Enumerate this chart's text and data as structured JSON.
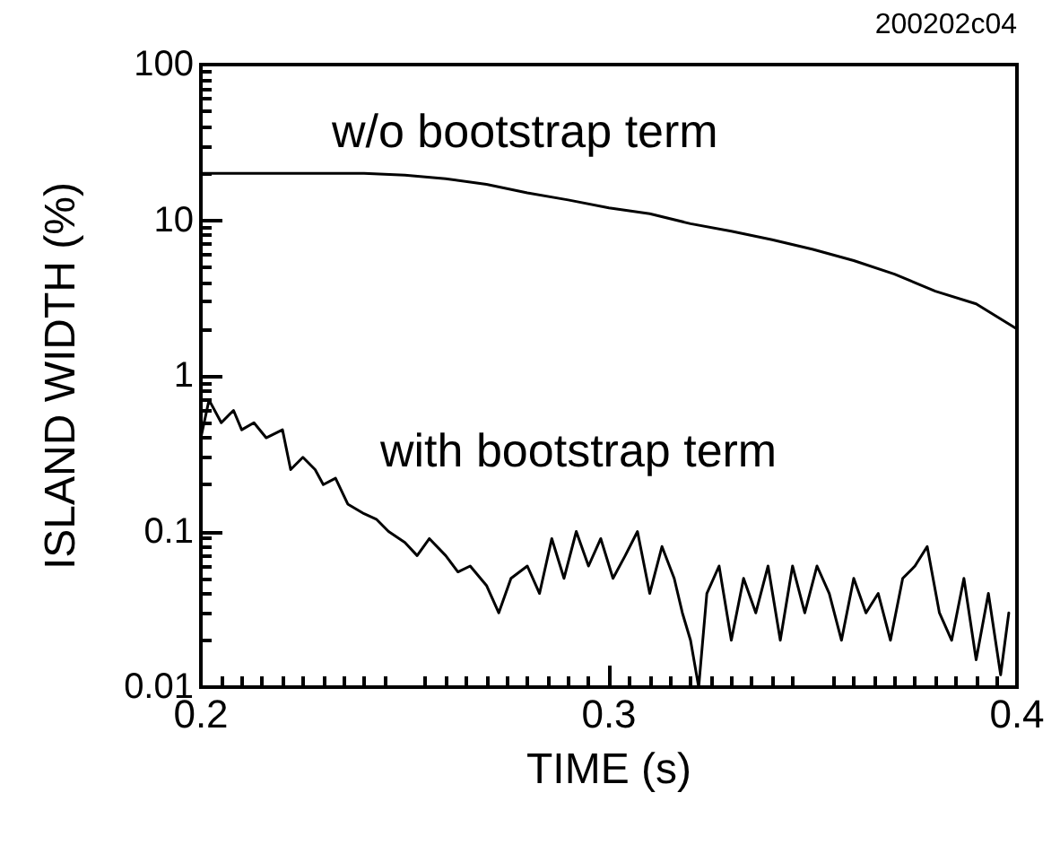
{
  "chart_data": {
    "type": "line",
    "xlabel": "TIME (s)",
    "ylabel": "ISLAND WIDTH (%)",
    "xlim": [
      0.2,
      0.4
    ],
    "xticks": [
      0.2,
      0.3,
      0.4
    ],
    "ylim": [
      0.01,
      100
    ],
    "yticks": [
      0.01,
      0.1,
      1,
      10,
      100
    ],
    "log": "y",
    "marker": "none",
    "line_style": "solid",
    "annotations": [
      "200202c04",
      "w/o bootstrap term",
      "with bootstrap term"
    ],
    "series": [
      {
        "color": "#000000",
        "x": [
          0.2,
          0.22,
          0.24,
          0.25,
          0.26,
          0.27,
          0.28,
          0.29,
          0.3,
          0.31,
          0.32,
          0.33,
          0.34,
          0.35,
          0.36,
          0.37,
          0.38,
          0.39,
          0.4
        ],
        "values": [
          20,
          20,
          20,
          19.5,
          18.5,
          17,
          15,
          13.5,
          12,
          11,
          9.5,
          8.5,
          7.5,
          6.5,
          5.5,
          4.5,
          3.5,
          2.9,
          2.0
        ]
      },
      {
        "color": "#000000",
        "x": [
          0.2,
          0.202,
          0.205,
          0.208,
          0.21,
          0.213,
          0.216,
          0.22,
          0.222,
          0.225,
          0.228,
          0.23,
          0.233,
          0.236,
          0.24,
          0.243,
          0.246,
          0.25,
          0.253,
          0.256,
          0.26,
          0.263,
          0.266,
          0.27,
          0.273,
          0.276,
          0.28,
          0.283,
          0.286,
          0.289,
          0.292,
          0.295,
          0.298,
          0.301,
          0.304,
          0.307,
          0.31,
          0.313,
          0.316,
          0.318,
          0.32,
          0.322,
          0.324,
          0.327,
          0.33,
          0.333,
          0.336,
          0.339,
          0.342,
          0.345,
          0.348,
          0.351,
          0.354,
          0.357,
          0.36,
          0.363,
          0.366,
          0.369,
          0.372,
          0.375,
          0.378,
          0.381,
          0.384,
          0.387,
          0.39,
          0.393,
          0.396,
          0.398
        ],
        "values": [
          0.4,
          0.7,
          0.5,
          0.6,
          0.45,
          0.5,
          0.4,
          0.45,
          0.25,
          0.3,
          0.25,
          0.2,
          0.22,
          0.15,
          0.13,
          0.12,
          0.1,
          0.085,
          0.07,
          0.09,
          0.07,
          0.055,
          0.06,
          0.045,
          0.03,
          0.05,
          0.06,
          0.04,
          0.09,
          0.05,
          0.1,
          0.06,
          0.09,
          0.05,
          0.07,
          0.1,
          0.04,
          0.08,
          0.05,
          0.03,
          0.02,
          0.01,
          0.04,
          0.06,
          0.02,
          0.05,
          0.03,
          0.06,
          0.02,
          0.06,
          0.03,
          0.06,
          0.04,
          0.02,
          0.05,
          0.03,
          0.04,
          0.02,
          0.05,
          0.06,
          0.08,
          0.03,
          0.02,
          0.05,
          0.015,
          0.04,
          0.012,
          0.03
        ]
      }
    ]
  }
}
